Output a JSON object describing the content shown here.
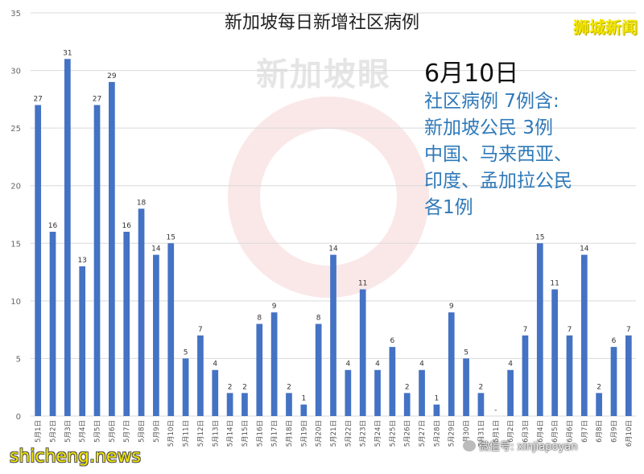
{
  "header": {
    "title": "新加坡每日新增社区病例",
    "brand": "狮城新闻"
  },
  "annotation": {
    "date": "6月10日",
    "body": "社区病例 7例含:\n新加坡公民 3例\n中国、马来西亚、\n印度、孟加拉公民\n各1例"
  },
  "watermark": {
    "text": "新加坡眼"
  },
  "footer": {
    "site": "shicheng.news",
    "wechat": "微信号: xinjiapoyan"
  },
  "colors": {
    "bar": "#4472c4",
    "grid": "#d9d9d9",
    "annotation": "#2f79b9",
    "brand": "#f2e600"
  },
  "chart_data": {
    "type": "bar",
    "title": "新加坡每日新增社区病例",
    "xlabel": "",
    "ylabel": "",
    "ylim": [
      0,
      35
    ],
    "yticks": [
      0,
      5,
      10,
      15,
      20,
      25,
      30,
      35
    ],
    "grid": true,
    "categories": [
      "5月1日",
      "5月2日",
      "5月3日",
      "5月4日",
      "5月5日",
      "5月6日",
      "5月7日",
      "5月8日",
      "5月9日",
      "5月10日",
      "5月11日",
      "5月12日",
      "5月13日",
      "5月14日",
      "5月15日",
      "5月16日",
      "5月17日",
      "5月18日",
      "5月19日",
      "5月20日",
      "5月21日",
      "5月22日",
      "5月23日",
      "5月24日",
      "5月25日",
      "5月26日",
      "5月27日",
      "5月28日",
      "5月29日",
      "5月30日",
      "5月31日",
      "6月1日",
      "6月2日",
      "6月3日",
      "6月4日",
      "6月5日",
      "6月6日",
      "6月7日",
      "6月8日",
      "6月9日",
      "6月10日"
    ],
    "values": [
      27,
      16,
      31,
      13,
      27,
      29,
      16,
      18,
      14,
      15,
      5,
      7,
      4,
      2,
      2,
      8,
      9,
      2,
      1,
      8,
      14,
      4,
      11,
      4,
      6,
      2,
      4,
      1,
      9,
      5,
      2,
      0,
      4,
      7,
      15,
      11,
      7,
      14,
      2,
      6,
      7
    ],
    "labels": [
      "27",
      "16",
      "31",
      "13",
      "27",
      "29",
      "16",
      "18",
      "14",
      "15",
      "5",
      "7",
      "4",
      "2",
      "2",
      "8",
      "9",
      "2",
      "1",
      "8",
      "14",
      "4",
      "11",
      "4",
      "6",
      "2",
      "4",
      "1",
      "9",
      "5",
      "2",
      "-",
      "4",
      "7",
      "15",
      "11",
      "7",
      "14",
      "2",
      "6",
      "7"
    ]
  }
}
